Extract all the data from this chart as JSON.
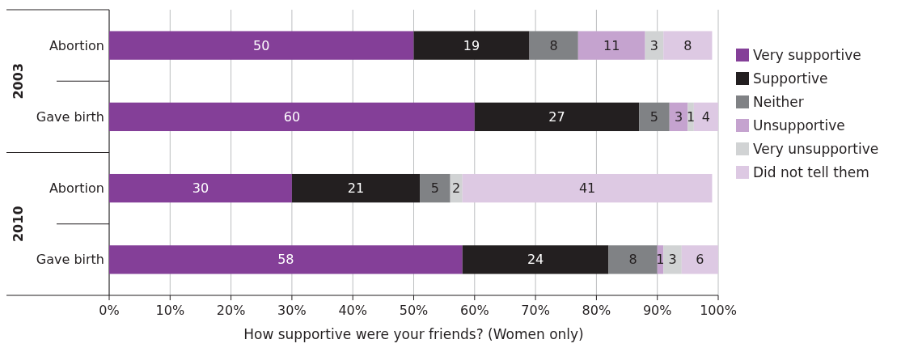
{
  "chart_data": {
    "type": "bar",
    "orientation": "horizontal",
    "stacked": true,
    "xlabel": "How supportive were your friends? (Women only)",
    "categories": [
      "Abortion",
      "Gave birth",
      "Abortion",
      "Gave birth"
    ],
    "annotations": [
      "2003",
      "2010"
    ],
    "series": [
      {
        "name": "Very supportive",
        "color": "#843f98",
        "values": [
          50,
          60,
          30,
          58
        ]
      },
      {
        "name": "Supportive",
        "color": "#231f20",
        "values": [
          19,
          27,
          21,
          24
        ]
      },
      {
        "name": "Neither",
        "color": "#808285",
        "values": [
          8,
          5,
          5,
          8
        ]
      },
      {
        "name": "Unsupportive",
        "color": "#c5a3cf",
        "values": [
          11,
          3,
          null,
          1
        ]
      },
      {
        "name": "Very unsupportive",
        "color": "#d1d3d4",
        "values": [
          3,
          1,
          2,
          3
        ]
      },
      {
        "name": "Did not tell them",
        "color": "#ddc9e3",
        "values": [
          8,
          4,
          41,
          6
        ]
      }
    ],
    "xlim": [
      0,
      100
    ],
    "xticks": [
      {
        "value": 0,
        "label": "0%"
      },
      {
        "value": 10,
        "label": "10%"
      },
      {
        "value": 20,
        "label": "20%"
      },
      {
        "value": 30,
        "label": "30%"
      },
      {
        "value": 40,
        "label": "40%"
      },
      {
        "value": 50,
        "label": "50%"
      },
      {
        "value": 60,
        "label": "60%"
      },
      {
        "value": 70,
        "label": "70%"
      },
      {
        "value": 80,
        "label": "80%"
      },
      {
        "value": 90,
        "label": "90%"
      },
      {
        "value": 100,
        "label": "100%"
      }
    ],
    "grid": "x",
    "legend": "right",
    "data_labels": true
  }
}
